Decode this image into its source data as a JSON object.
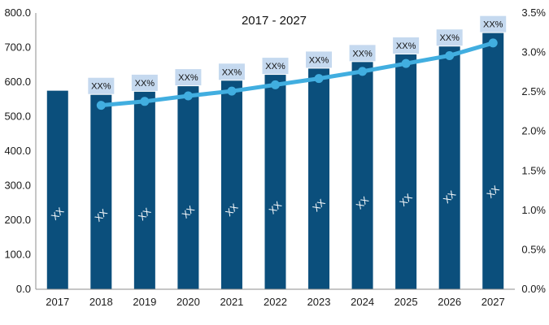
{
  "chart_data": {
    "type": "bar",
    "title": "2017 - 2027",
    "categories": [
      "2017",
      "2018",
      "2019",
      "2020",
      "2021",
      "2022",
      "2023",
      "2024",
      "2025",
      "2026",
      "2027"
    ],
    "series": [
      {
        "type": "bar",
        "axis": "left",
        "values": [
          575,
          563,
          572,
          588,
          604,
          621,
          639,
          658,
          680,
          703,
          742
        ],
        "labels": [
          "XX",
          "XX",
          "XX",
          "XX",
          "XX",
          "XX",
          "XX",
          "XX",
          "XX",
          "XX",
          "XX"
        ],
        "color": "#0b4f7c"
      },
      {
        "type": "line",
        "axis": "right",
        "values": [
          null,
          2.33,
          2.38,
          2.45,
          2.51,
          2.59,
          2.67,
          2.76,
          2.86,
          2.96,
          3.12
        ],
        "labels": [
          "",
          "XX%",
          "XX%",
          "XX%",
          "XX%",
          "XX%",
          "XX%",
          "XX%",
          "XX%",
          "XX%",
          "XX%"
        ],
        "color": "#41aee0"
      }
    ],
    "y_left": {
      "min": 0,
      "max": 800,
      "step": 100,
      "tick_labels": [
        "0.0",
        "100.0",
        "200.0",
        "300.0",
        "400.0",
        "500.0",
        "600.0",
        "700.0",
        "800.0"
      ]
    },
    "y_right": {
      "min": 0,
      "max": 3.5,
      "step": 0.5,
      "tick_labels": [
        "0.0%",
        "0.5%",
        "1.0%",
        "1.5%",
        "2.0%",
        "2.5%",
        "3.0%",
        "3.5%"
      ]
    },
    "label_box_color": "#c5d9ef",
    "grid": false,
    "legend": "none"
  }
}
